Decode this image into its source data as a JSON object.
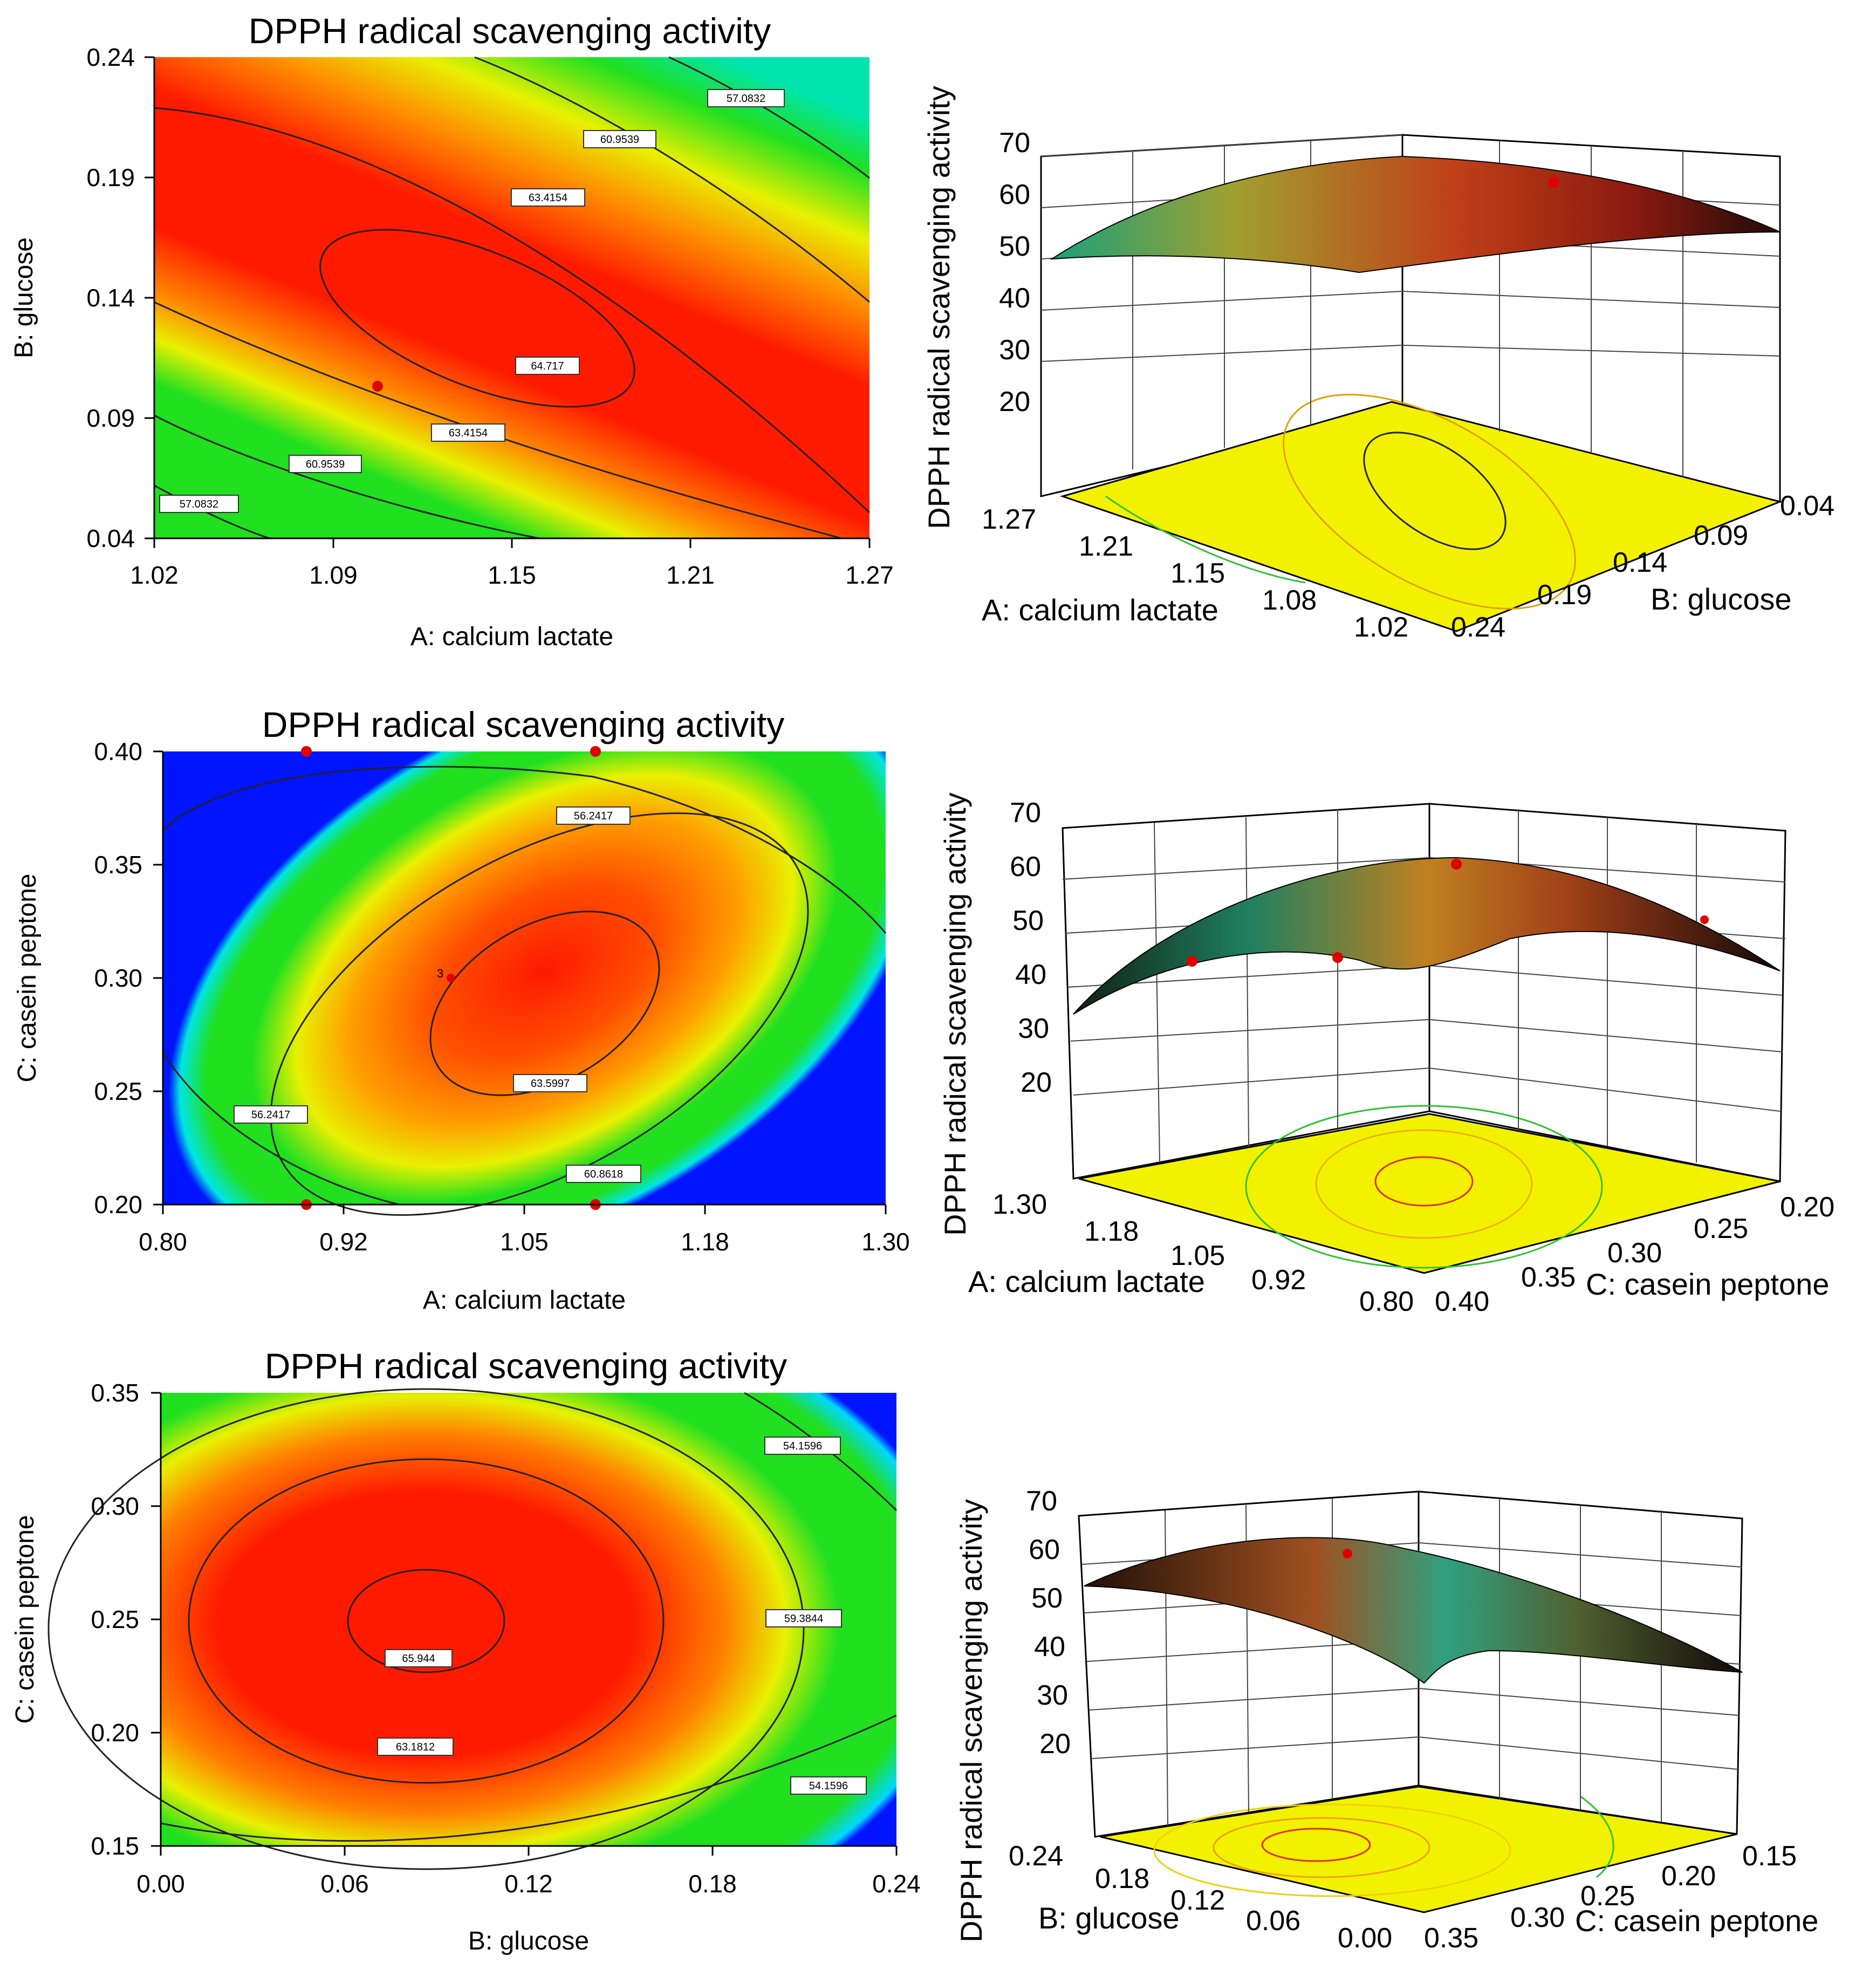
{
  "chart_data": [
    {
      "type": "contour",
      "title": "DPPH radical scavenging activity",
      "xlabel": "A: calcium lactate",
      "ylabel": "B: glucose",
      "x_ticks": [
        "1.02",
        "1.09",
        "1.15",
        "1.21",
        "1.27"
      ],
      "y_ticks": [
        "0.04",
        "0.09",
        "0.14",
        "0.19",
        "0.24"
      ],
      "xlim": [
        1.02,
        1.27
      ],
      "ylim": [
        0.04,
        0.24
      ],
      "optimum": {
        "x": 1.115,
        "y": 0.12,
        "value": 64.717
      },
      "contour_levels": [
        "57.0832",
        "60.9539",
        "63.4154",
        "64.717",
        "63.4154",
        "60.9539",
        "57.0832"
      ],
      "design_points": [
        {
          "x": 1.1,
          "y": 0.105
        }
      ]
    },
    {
      "type": "surface3d",
      "zlabel": "DPPH radical scavenging activity",
      "xlabel": "A: calcium lactate",
      "ylabel": "B: glucose",
      "z_ticks": [
        "20",
        "30",
        "40",
        "50",
        "60",
        "70"
      ],
      "x_ticks": [
        "1.27",
        "1.21",
        "1.15",
        "1.08",
        "1.02"
      ],
      "y_ticks": [
        "0.24",
        "0.19",
        "0.14",
        "0.09",
        "0.04"
      ]
    },
    {
      "type": "contour",
      "title": "DPPH radical scavenging activity",
      "xlabel": "A: calcium lactate",
      "ylabel": "C: casein peptone",
      "x_ticks": [
        "0.80",
        "0.92",
        "1.05",
        "1.18",
        "1.30"
      ],
      "y_ticks": [
        "0.20",
        "0.25",
        "0.30",
        "0.35",
        "0.40"
      ],
      "xlim": [
        0.8,
        1.3
      ],
      "ylim": [
        0.2,
        0.4
      ],
      "optimum": {
        "x": 1.05,
        "y": 0.28,
        "value": 63.5997
      },
      "contour_levels": [
        "56.2417",
        "60.8618",
        "63.5997",
        "56.2417"
      ],
      "design_points": [
        {
          "x": 0.9,
          "y": 0.4
        },
        {
          "x": 1.1,
          "y": 0.4
        },
        {
          "x": 0.9,
          "y": 0.2
        },
        {
          "x": 1.1,
          "y": 0.2
        },
        {
          "x": 1.0,
          "y": 0.3
        }
      ],
      "center_label": "3"
    },
    {
      "type": "surface3d",
      "zlabel": "DPPH radical scavenging activity",
      "xlabel": "A: calcium lactate",
      "ylabel": "C: casein peptone",
      "z_ticks": [
        "20",
        "30",
        "40",
        "50",
        "60",
        "70"
      ],
      "x_ticks": [
        "1.30",
        "1.18",
        "1.05",
        "0.92",
        "0.80"
      ],
      "y_ticks": [
        "0.40",
        "0.35",
        "0.30",
        "0.25",
        "0.20"
      ]
    },
    {
      "type": "contour",
      "title": "DPPH radical scavenging activity",
      "xlabel": "B: glucose",
      "ylabel": "C: casein peptone",
      "x_ticks": [
        "0.00",
        "0.06",
        "0.12",
        "0.18",
        "0.24"
      ],
      "y_ticks": [
        "0.15",
        "0.20",
        "0.25",
        "0.30",
        "0.35"
      ],
      "xlim": [
        0.0,
        0.24
      ],
      "ylim": [
        0.15,
        0.35
      ],
      "optimum": {
        "x": 0.09,
        "y": 0.25,
        "value": 65.944
      },
      "contour_levels": [
        "54.1596",
        "59.3844",
        "63.1812",
        "65.944",
        "54.1596"
      ]
    },
    {
      "type": "surface3d",
      "zlabel": "DPPH radical scavenging activity",
      "xlabel": "B: glucose",
      "ylabel": "C: casein peptone",
      "z_ticks": [
        "20",
        "30",
        "40",
        "50",
        "60",
        "70"
      ],
      "x_ticks": [
        "0.24",
        "0.18",
        "0.12",
        "0.06",
        "0.00"
      ],
      "y_ticks": [
        "0.35",
        "0.30",
        "0.25",
        "0.20",
        "0.15"
      ]
    }
  ],
  "colors": {
    "red": "#ff1a00",
    "orange": "#ff7a00",
    "yellow": "#f5f500",
    "green": "#19e619",
    "cyan": "#00e5e5",
    "blue": "#0014ff",
    "floor": "#f2f200",
    "point": "#e00000"
  }
}
